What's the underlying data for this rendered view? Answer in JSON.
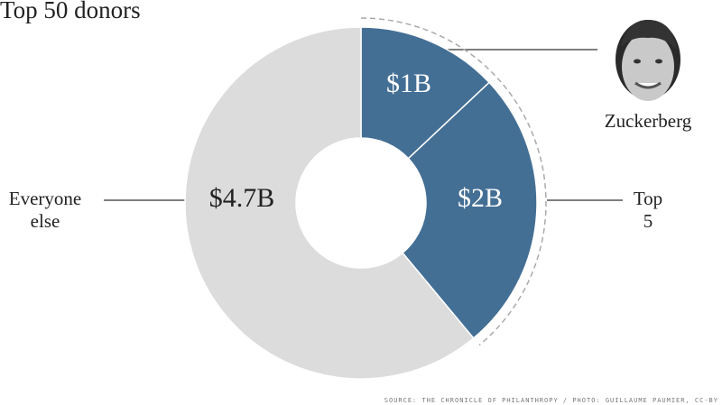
{
  "chart_data": {
    "type": "pie",
    "title": "Top 50 donors",
    "categories": [
      "Zuckerberg",
      "Top 5",
      "Everyone else"
    ],
    "values": [
      1,
      2,
      4.7
    ],
    "value_labels": [
      "$1B",
      "$2B",
      "$4.7B"
    ],
    "colors": [
      "#446f95",
      "#446f95",
      "#dcdcdc"
    ],
    "source": "SOURCE: THE CHRONICLE OF PHILANTHROPY / PHOTO: GUILLAUME PAUMIER, CC-BY"
  }
}
